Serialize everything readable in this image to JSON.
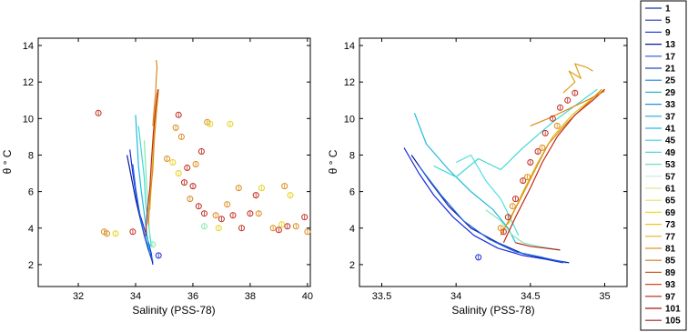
{
  "chart_data": [
    {
      "type": "line",
      "title": "",
      "xlabel": "Salinity (PSS-78)",
      "ylabel": "θ ° C",
      "xlim": [
        30.6,
        40.1
      ],
      "ylim": [
        0.8,
        14.4
      ],
      "xticks": [
        "32",
        "34",
        "36",
        "38",
        "40"
      ],
      "xtick_values": [
        32,
        34,
        36,
        38,
        40
      ],
      "yticks": [
        "2",
        "4",
        "6",
        "8",
        "10",
        "12",
        "14"
      ],
      "ytick_values": [
        2,
        4,
        6,
        8,
        10,
        12,
        14
      ],
      "series": [
        {
          "color": "#1a2bd8",
          "x": [
            33.8,
            33.9,
            34.0,
            34.1,
            34.3,
            34.45,
            34.55,
            34.6
          ],
          "y": [
            8.3,
            7.0,
            6.0,
            5.0,
            4.0,
            3.2,
            2.6,
            2.0
          ]
        },
        {
          "color": "#0a1a9e",
          "x": [
            33.7,
            33.85,
            34.0,
            34.15,
            34.3,
            34.45,
            34.6
          ],
          "y": [
            8.0,
            6.8,
            5.6,
            4.6,
            3.6,
            2.8,
            2.1
          ]
        },
        {
          "color": "#1f6ae0",
          "x": [
            33.9,
            34.0,
            34.1,
            34.2,
            34.35,
            34.5,
            34.6
          ],
          "y": [
            7.5,
            6.2,
            5.2,
            4.3,
            3.4,
            2.7,
            2.2
          ]
        },
        {
          "color": "#22b8e0",
          "x": [
            34.0,
            34.05,
            34.1,
            34.2,
            34.3,
            34.4,
            34.5
          ],
          "y": [
            10.2,
            8.8,
            7.4,
            6.0,
            4.8,
            3.6,
            2.6
          ]
        },
        {
          "color": "#3fd8d0",
          "x": [
            34.1,
            34.2,
            34.3,
            34.35,
            34.45,
            34.55
          ],
          "y": [
            9.6,
            8.2,
            6.8,
            5.4,
            4.2,
            3.0
          ]
        },
        {
          "color": "#7ee7b0",
          "x": [
            34.3,
            34.35,
            34.4,
            34.45,
            34.5
          ],
          "y": [
            8.8,
            7.4,
            6.0,
            4.6,
            3.4
          ]
        },
        {
          "color": "#d9c21e",
          "x": [
            34.5,
            34.55,
            34.6,
            34.65,
            34.7,
            34.75
          ],
          "y": [
            5.0,
            6.4,
            7.8,
            9.2,
            10.4,
            11.4
          ]
        },
        {
          "color": "#e08b14",
          "x": [
            34.45,
            34.5,
            34.6,
            34.65,
            34.72,
            34.8
          ],
          "y": [
            4.2,
            5.6,
            7.2,
            8.8,
            10.2,
            11.6
          ]
        },
        {
          "color": "#c0281a",
          "x": [
            34.35,
            34.4,
            34.5,
            34.55,
            34.62,
            34.7,
            34.78
          ],
          "y": [
            3.6,
            4.8,
            6.2,
            7.6,
            9.2,
            10.6,
            11.6
          ]
        },
        {
          "color": "#d98a1a",
          "x": [
            34.6,
            34.65,
            34.7,
            34.72,
            34.75,
            34.72
          ],
          "y": [
            9.6,
            10.6,
            11.4,
            12.2,
            12.8,
            13.2
          ]
        }
      ],
      "scatter": [
        {
          "color": "#c0281a",
          "x": [
            32.7,
            33.9,
            35.5,
            35.7,
            35.8,
            36.0,
            36.2,
            36.3,
            36.4,
            37.0,
            37.4,
            37.7,
            38.0,
            38.2,
            39.0,
            39.3,
            39.9
          ],
          "y": [
            10.3,
            3.8,
            10.2,
            6.5,
            7.3,
            6.3,
            5.2,
            8.2,
            4.8,
            4.5,
            4.7,
            4.0,
            4.8,
            5.8,
            3.9,
            4.1,
            4.6
          ]
        },
        {
          "color": "#d98a1a",
          "x": [
            32.9,
            33.0,
            35.1,
            35.4,
            35.6,
            35.9,
            36.1,
            36.5,
            36.8,
            37.2,
            37.6,
            38.3,
            38.8,
            39.2,
            39.6,
            40.0
          ],
          "y": [
            3.8,
            3.7,
            7.8,
            9.5,
            9.0,
            5.6,
            7.5,
            9.8,
            4.7,
            5.3,
            6.2,
            4.8,
            4.0,
            6.3,
            4.1,
            3.8
          ]
        },
        {
          "color": "#e4d21e",
          "x": [
            33.3,
            35.3,
            35.5,
            36.6,
            36.9,
            37.3,
            38.4,
            39.1,
            39.4
          ],
          "y": [
            3.7,
            7.6,
            7.0,
            9.7,
            4.0,
            9.7,
            6.2,
            4.2,
            5.8
          ]
        },
        {
          "color": "#7ee7b0",
          "x": [
            34.6,
            36.4
          ],
          "y": [
            3.1,
            4.1
          ]
        },
        {
          "color": "#1a2bd8",
          "x": [
            34.8
          ],
          "y": [
            2.5
          ]
        }
      ]
    },
    {
      "type": "line",
      "title": "",
      "xlabel": "Salinity (PSS-78)",
      "ylabel": "θ ° C",
      "xlim": [
        33.35,
        35.15
      ],
      "ylim": [
        0.8,
        14.4
      ],
      "xticks": [
        "33.5",
        "34",
        "34.5",
        "35"
      ],
      "xtick_values": [
        33.5,
        34,
        34.5,
        35
      ],
      "yticks": [
        "2",
        "4",
        "6",
        "8",
        "10",
        "12",
        "14"
      ],
      "ytick_values": [
        2,
        4,
        6,
        8,
        10,
        12,
        14
      ],
      "series": [
        {
          "color": "#1a2bd8",
          "x": [
            33.65,
            33.75,
            33.85,
            33.98,
            34.12,
            34.28,
            34.45,
            34.6,
            34.72
          ],
          "y": [
            8.4,
            7.0,
            5.8,
            4.6,
            3.6,
            2.9,
            2.5,
            2.3,
            2.1
          ]
        },
        {
          "color": "#0a1a9e",
          "x": [
            33.7,
            33.82,
            33.95,
            34.1,
            34.28,
            34.45,
            34.62,
            34.76
          ],
          "y": [
            8.0,
            6.6,
            5.2,
            4.0,
            3.2,
            2.6,
            2.3,
            2.1
          ]
        },
        {
          "color": "#1f6ae0",
          "x": [
            33.75,
            33.9,
            34.05,
            34.22,
            34.4,
            34.58,
            34.74
          ],
          "y": [
            7.4,
            5.8,
            4.4,
            3.4,
            2.7,
            2.4,
            2.1
          ]
        },
        {
          "color": "#22b8e0",
          "x": [
            33.72,
            33.8,
            33.95,
            34.1,
            34.25,
            34.35,
            34.4
          ],
          "y": [
            10.3,
            8.6,
            7.2,
            6.0,
            5.0,
            4.0,
            3.2
          ]
        },
        {
          "color": "#3fd8d0",
          "x": [
            33.85,
            34.0,
            34.15,
            34.3,
            34.45,
            34.65,
            34.95
          ],
          "y": [
            7.4,
            6.8,
            7.8,
            7.2,
            8.4,
            9.8,
            11.6
          ]
        },
        {
          "color": "#4fe0e0",
          "x": [
            34.0,
            34.1,
            34.2,
            34.3,
            34.35,
            34.42
          ],
          "y": [
            7.6,
            8.0,
            6.6,
            5.6,
            4.8,
            3.6
          ]
        },
        {
          "color": "#7ee7b0",
          "x": [
            34.2,
            34.3,
            34.38,
            34.45,
            34.55,
            34.7
          ],
          "y": [
            5.0,
            4.4,
            3.6,
            3.2,
            3.0,
            2.8
          ]
        },
        {
          "color": "#d9c21e",
          "x": [
            34.35,
            34.45,
            34.55,
            34.65,
            34.78,
            34.9,
            35.0
          ],
          "y": [
            4.2,
            6.0,
            7.6,
            9.0,
            10.2,
            11.0,
            11.6
          ]
        },
        {
          "color": "#e08b14",
          "x": [
            34.3,
            34.42,
            34.52,
            34.62,
            34.75,
            34.88,
            34.98
          ],
          "y": [
            3.6,
            5.4,
            7.0,
            8.6,
            9.8,
            10.8,
            11.6
          ]
        },
        {
          "color": "#c0281a",
          "x": [
            34.32,
            34.4,
            34.5,
            34.58,
            34.68,
            34.8,
            34.92,
            35.0
          ],
          "y": [
            3.2,
            4.6,
            6.2,
            7.6,
            9.0,
            10.2,
            11.0,
            11.6
          ]
        },
        {
          "color": "#b5201a",
          "x": [
            34.4,
            34.5,
            34.6,
            34.7
          ],
          "y": [
            3.2,
            3.0,
            2.9,
            2.8
          ]
        },
        {
          "color": "#d98a1a",
          "x": [
            34.5,
            34.62,
            34.75,
            34.88,
            35.0
          ],
          "y": [
            9.6,
            10.0,
            10.5,
            11.0,
            11.5
          ]
        },
        {
          "color": "#d9a21a",
          "x": [
            34.72,
            34.8,
            34.76,
            34.84,
            34.8,
            34.88,
            34.92
          ],
          "y": [
            11.4,
            12.0,
            12.6,
            12.2,
            13.0,
            12.8,
            12.6
          ]
        }
      ],
      "scatter": [
        {
          "color": "#c0281a",
          "x": [
            34.32,
            34.35,
            34.4,
            34.45,
            34.5,
            34.55,
            34.6,
            34.65,
            34.7,
            34.75,
            34.8
          ],
          "y": [
            3.8,
            4.6,
            5.6,
            6.6,
            7.6,
            8.2,
            9.2,
            10.0,
            10.6,
            11.0,
            11.4
          ]
        },
        {
          "color": "#e08b14",
          "x": [
            34.3,
            34.38,
            34.48,
            34.58,
            34.68
          ],
          "y": [
            4.0,
            5.2,
            6.8,
            8.4,
            9.6
          ]
        },
        {
          "color": "#1a2bd8",
          "x": [
            34.15
          ],
          "y": [
            2.4
          ]
        }
      ]
    }
  ],
  "legend": {
    "entries": [
      {
        "label": "1",
        "color": "#1f2fa0"
      },
      {
        "label": "5",
        "color": "#2a3ac0"
      },
      {
        "label": "9",
        "color": "#2e44d8"
      },
      {
        "label": "13",
        "color": "#0a1690"
      },
      {
        "label": "17",
        "color": "#1f5ad8"
      },
      {
        "label": "21",
        "color": "#1f4cc0"
      },
      {
        "label": "25",
        "color": "#1f84d8"
      },
      {
        "label": "29",
        "color": "#34b8c8"
      },
      {
        "label": "33",
        "color": "#2290d8"
      },
      {
        "label": "37",
        "color": "#22a8e0"
      },
      {
        "label": "41",
        "color": "#2ab8e8"
      },
      {
        "label": "45",
        "color": "#3ed0e0"
      },
      {
        "label": "49",
        "color": "#4ed8d8"
      },
      {
        "label": "53",
        "color": "#70e0b8"
      },
      {
        "label": "57",
        "color": "#c8ecd8"
      },
      {
        "label": "61",
        "color": "#d8ec98"
      },
      {
        "label": "65",
        "color": "#e4e070"
      },
      {
        "label": "69",
        "color": "#e8e020"
      },
      {
        "label": "73",
        "color": "#e8c820"
      },
      {
        "label": "77",
        "color": "#e8b020"
      },
      {
        "label": "81",
        "color": "#e09820"
      },
      {
        "label": "85",
        "color": "#d87820"
      },
      {
        "label": "89",
        "color": "#c86020"
      },
      {
        "label": "93",
        "color": "#d84820"
      },
      {
        "label": "97",
        "color": "#b82010"
      },
      {
        "label": "101",
        "color": "#a81810"
      },
      {
        "label": "105",
        "color": "#a82020"
      }
    ]
  }
}
